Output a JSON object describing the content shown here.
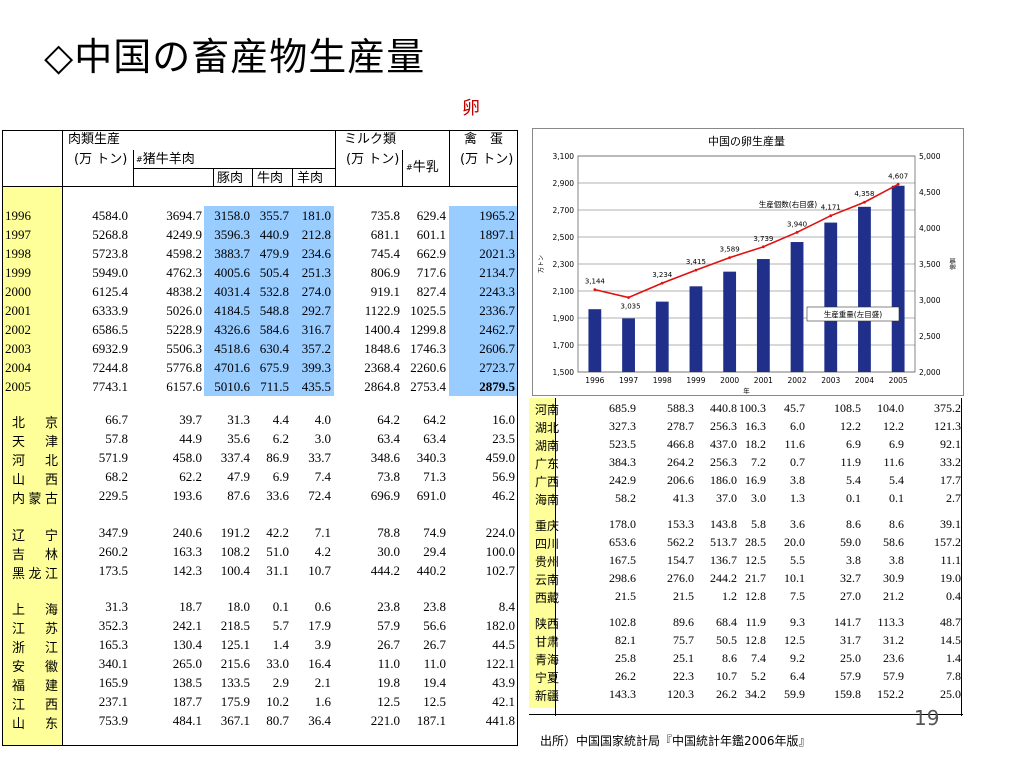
{
  "slide": {
    "title": "◇中国の畜産物生産量",
    "egg_label": "卵",
    "page_number": "19",
    "source": "出所）中国国家統計局『中国統計年鑑2006年版』"
  },
  "left_table": {
    "headers": {
      "meat": "肉類生産",
      "meat_unit": "(万 トン)",
      "pig_cattle_sheep": "猪牛羊肉",
      "pork": "豚肉",
      "beef": "牛肉",
      "mutton": "羊肉",
      "milk": "ミルク類",
      "milk_unit": "(万 トン)",
      "cow_milk": "牛乳",
      "eggs": "禽　蛋",
      "eggs_unit": "(万 トン)",
      "mark": "#"
    },
    "years": [
      {
        "label": "1996",
        "vals": [
          "4584.0",
          "3694.7",
          "3158.0",
          "355.7",
          "181.0",
          "735.8",
          "629.4",
          "1965.2"
        ]
      },
      {
        "label": "1997",
        "vals": [
          "5268.8",
          "4249.9",
          "3596.3",
          "440.9",
          "212.8",
          "681.1",
          "601.1",
          "1897.1"
        ]
      },
      {
        "label": "1998",
        "vals": [
          "5723.8",
          "4598.2",
          "3883.7",
          "479.9",
          "234.6",
          "745.4",
          "662.9",
          "2021.3"
        ]
      },
      {
        "label": "1999",
        "vals": [
          "5949.0",
          "4762.3",
          "4005.6",
          "505.4",
          "251.3",
          "806.9",
          "717.6",
          "2134.7"
        ]
      },
      {
        "label": "2000",
        "vals": [
          "6125.4",
          "4838.2",
          "4031.4",
          "532.8",
          "274.0",
          "919.1",
          "827.4",
          "2243.3"
        ]
      },
      {
        "label": "2001",
        "vals": [
          "6333.9",
          "5026.0",
          "4184.5",
          "548.8",
          "292.7",
          "1122.9",
          "1025.5",
          "2336.7"
        ]
      },
      {
        "label": "2002",
        "vals": [
          "6586.5",
          "5228.9",
          "4326.6",
          "584.6",
          "316.7",
          "1400.4",
          "1299.8",
          "2462.7"
        ]
      },
      {
        "label": "2003",
        "vals": [
          "6932.9",
          "5506.3",
          "4518.6",
          "630.4",
          "357.2",
          "1848.6",
          "1746.3",
          "2606.7"
        ]
      },
      {
        "label": "2004",
        "vals": [
          "7244.8",
          "5776.8",
          "4701.6",
          "675.9",
          "399.3",
          "2368.4",
          "2260.6",
          "2723.7"
        ]
      },
      {
        "label": "2005",
        "vals": [
          "7743.1",
          "6157.6",
          "5010.6",
          "711.5",
          "435.5",
          "2864.8",
          "2753.4",
          "2879.5"
        ]
      }
    ],
    "provinces": [
      {
        "label": "北京",
        "vals": [
          "66.7",
          "39.7",
          "31.3",
          "4.4",
          "4.0",
          "64.2",
          "64.2",
          "16.0"
        ]
      },
      {
        "label": "天津",
        "vals": [
          "57.8",
          "44.9",
          "35.6",
          "6.2",
          "3.0",
          "63.4",
          "63.4",
          "23.5"
        ]
      },
      {
        "label": "河北",
        "vals": [
          "571.9",
          "458.0",
          "337.4",
          "86.9",
          "33.7",
          "348.6",
          "340.3",
          "459.0"
        ]
      },
      {
        "label": "山西",
        "vals": [
          "68.2",
          "62.2",
          "47.9",
          "6.9",
          "7.4",
          "73.8",
          "71.3",
          "56.9"
        ]
      },
      {
        "label": "内蒙古",
        "vals": [
          "229.5",
          "193.6",
          "87.6",
          "33.6",
          "72.4",
          "696.9",
          "691.0",
          "46.2"
        ]
      },
      {
        "label": "辽宁",
        "vals": [
          "347.9",
          "240.6",
          "191.2",
          "42.2",
          "7.1",
          "78.8",
          "74.9",
          "224.0"
        ]
      },
      {
        "label": "吉林",
        "vals": [
          "260.2",
          "163.3",
          "108.2",
          "51.0",
          "4.2",
          "30.0",
          "29.4",
          "100.0"
        ]
      },
      {
        "label": "黑龙江",
        "vals": [
          "173.5",
          "142.3",
          "100.4",
          "31.1",
          "10.7",
          "444.2",
          "440.2",
          "102.7"
        ]
      },
      {
        "label": "上海",
        "vals": [
          "31.3",
          "18.7",
          "18.0",
          "0.1",
          "0.6",
          "23.8",
          "23.8",
          "8.4"
        ]
      },
      {
        "label": "江苏",
        "vals": [
          "352.3",
          "242.1",
          "218.5",
          "5.7",
          "17.9",
          "57.9",
          "56.6",
          "182.0"
        ]
      },
      {
        "label": "浙江",
        "vals": [
          "165.3",
          "130.4",
          "125.1",
          "1.4",
          "3.9",
          "26.7",
          "26.7",
          "44.5"
        ]
      },
      {
        "label": "安徽",
        "vals": [
          "340.1",
          "265.0",
          "215.6",
          "33.0",
          "16.4",
          "11.0",
          "11.0",
          "122.1"
        ]
      },
      {
        "label": "福建",
        "vals": [
          "165.9",
          "138.5",
          "133.5",
          "2.9",
          "2.1",
          "19.8",
          "19.4",
          "43.9"
        ]
      },
      {
        "label": "江西",
        "vals": [
          "237.1",
          "187.7",
          "175.9",
          "10.2",
          "1.6",
          "12.5",
          "12.5",
          "42.1"
        ]
      },
      {
        "label": "山东",
        "vals": [
          "753.9",
          "484.1",
          "367.1",
          "80.7",
          "36.4",
          "221.0",
          "187.1",
          "441.8"
        ]
      }
    ]
  },
  "right_table": {
    "rows": [
      {
        "label": "河南",
        "vals": [
          "685.9",
          "588.3",
          "440.8",
          "100.3",
          "45.7",
          "108.5",
          "104.0",
          "375.2"
        ]
      },
      {
        "label": "湖北",
        "vals": [
          "327.3",
          "278.7",
          "256.3",
          "16.3",
          "6.0",
          "12.2",
          "12.2",
          "121.3"
        ]
      },
      {
        "label": "湖南",
        "vals": [
          "523.5",
          "466.8",
          "437.0",
          "18.2",
          "11.6",
          "6.9",
          "6.9",
          "92.1"
        ]
      },
      {
        "label": "广东",
        "vals": [
          "384.3",
          "264.2",
          "256.3",
          "7.2",
          "0.7",
          "11.9",
          "11.6",
          "33.2"
        ]
      },
      {
        "label": "广西",
        "vals": [
          "242.9",
          "206.6",
          "186.0",
          "16.9",
          "3.8",
          "5.4",
          "5.4",
          "17.7"
        ]
      },
      {
        "label": "海南",
        "vals": [
          "58.2",
          "41.3",
          "37.0",
          "3.0",
          "1.3",
          "0.1",
          "0.1",
          "2.7"
        ]
      },
      {
        "label": "重庆",
        "vals": [
          "178.0",
          "153.3",
          "143.8",
          "5.8",
          "3.6",
          "8.6",
          "8.6",
          "39.1"
        ]
      },
      {
        "label": "四川",
        "vals": [
          "653.6",
          "562.2",
          "513.7",
          "28.5",
          "20.0",
          "59.0",
          "58.6",
          "157.2"
        ]
      },
      {
        "label": "贵州",
        "vals": [
          "167.5",
          "154.7",
          "136.7",
          "12.5",
          "5.5",
          "3.8",
          "3.8",
          "11.1"
        ]
      },
      {
        "label": "云南",
        "vals": [
          "298.6",
          "276.0",
          "244.2",
          "21.7",
          "10.1",
          "32.7",
          "30.9",
          "19.0"
        ]
      },
      {
        "label": "西藏",
        "vals": [
          "21.5",
          "21.5",
          "1.2",
          "12.8",
          "7.5",
          "27.0",
          "21.2",
          "0.4"
        ]
      },
      {
        "label": "陕西",
        "vals": [
          "102.8",
          "89.6",
          "68.4",
          "11.9",
          "9.3",
          "141.7",
          "113.3",
          "48.7"
        ]
      },
      {
        "label": "甘肃",
        "vals": [
          "82.1",
          "75.7",
          "50.5",
          "12.8",
          "12.5",
          "31.7",
          "31.2",
          "14.5"
        ]
      },
      {
        "label": "青海",
        "vals": [
          "25.8",
          "25.1",
          "8.6",
          "7.4",
          "9.2",
          "25.0",
          "23.6",
          "1.4"
        ]
      },
      {
        "label": "宁夏",
        "vals": [
          "26.2",
          "22.3",
          "10.7",
          "5.2",
          "6.4",
          "57.9",
          "57.9",
          "7.8"
        ]
      },
      {
        "label": "新疆",
        "vals": [
          "143.3",
          "120.3",
          "26.2",
          "34.2",
          "59.9",
          "159.8",
          "152.2",
          "25.0"
        ]
      }
    ]
  },
  "chart_data": {
    "type": "bar",
    "title": "中国の卵生産量",
    "categories": [
      "1996",
      "1997",
      "1998",
      "1999",
      "2000",
      "2001",
      "2002",
      "2003",
      "2004",
      "2005"
    ],
    "xlabel": "年",
    "y_left_label": "万トン",
    "y_right_label": "億個",
    "ylim_left": [
      1500,
      3100
    ],
    "yticks_left": [
      "1,500",
      "1,700",
      "1,900",
      "2,100",
      "2,300",
      "2,500",
      "2,700",
      "2,900",
      "3,100"
    ],
    "ylim_right": [
      2000,
      5000
    ],
    "yticks_right": [
      "2,000",
      "2,500",
      "3,000",
      "3,500",
      "4,000",
      "4,500",
      "5,000"
    ],
    "grid": true,
    "series": [
      {
        "name": "生産重量(左目盛)",
        "type": "bar",
        "axis": "left",
        "color": "#1f2f8a",
        "values": [
          1965.2,
          1897.1,
          2021.3,
          2134.7,
          2243.3,
          2336.7,
          2462.7,
          2606.7,
          2723.7,
          2879.5
        ]
      },
      {
        "name": "生産個数(右目盛)",
        "type": "line",
        "axis": "right",
        "color": "#e01010",
        "values": [
          3144,
          3035,
          3234,
          3415,
          3589,
          3739,
          3940,
          4171,
          4358,
          4607
        ],
        "labels": [
          "3,144",
          "3,035",
          "3,234",
          "3,415",
          "3,589",
          "3,739",
          "3,940",
          "4,171",
          "4,358",
          "4,607"
        ]
      }
    ]
  }
}
